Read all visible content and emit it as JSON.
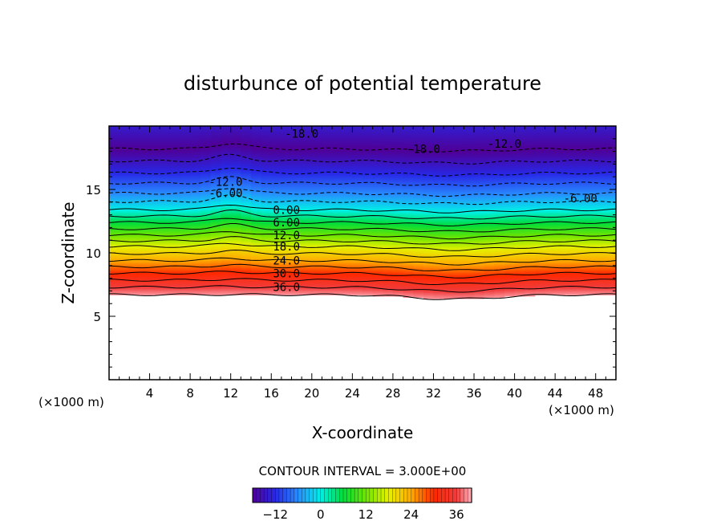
{
  "chart_data": {
    "type": "heatmap",
    "title": "disturbunce of potential temperature",
    "xlabel": "X-coordinate",
    "ylabel": "Z-coordinate",
    "x_unit_label": "(×1000 m)",
    "y_unit_label": "(×1000 m)",
    "xlim": [
      0,
      50
    ],
    "ylim": [
      0,
      20
    ],
    "x_ticks": [
      4,
      8,
      12,
      16,
      20,
      24,
      28,
      32,
      36,
      40,
      44,
      48
    ],
    "y_ticks": [
      5,
      10,
      15
    ],
    "x_tick_labels": [
      "4",
      "8",
      "12",
      "16",
      "20",
      "24",
      "28",
      "32",
      "36",
      "40",
      "44",
      "48"
    ],
    "y_tick_labels": [
      "5",
      "10",
      "15"
    ],
    "contour_interval_label": "CONTOUR INTERVAL = 3.000E+00",
    "colorbar": {
      "range": [
        -18,
        40
      ],
      "ticks": [
        -12,
        0,
        12,
        24,
        36
      ],
      "tick_labels": [
        "−12",
        "0",
        "12",
        "24",
        "36"
      ]
    },
    "contour_labels": [
      {
        "text": "0.00",
        "x": 17.5,
        "y": 13.4
      },
      {
        "text": "6.00",
        "x": 17.5,
        "y": 12.4
      },
      {
        "text": "12.0",
        "x": 17.5,
        "y": 11.4
      },
      {
        "text": "18.0",
        "x": 17.5,
        "y": 10.5
      },
      {
        "text": "24.0",
        "x": 17.5,
        "y": 9.4
      },
      {
        "text": "30.0",
        "x": 17.5,
        "y": 8.4
      },
      {
        "text": "36.0",
        "x": 17.5,
        "y": 7.3
      },
      {
        "text": "-6.00",
        "x": 11.5,
        "y": 14.7
      },
      {
        "text": "-12.0",
        "x": 11.5,
        "y": 15.6
      },
      {
        "text": "-18.0",
        "x": 19.0,
        "y": 19.4
      },
      {
        "text": "-18.0",
        "x": 31.0,
        "y": 18.2
      },
      {
        "text": "-12.0",
        "x": 39.0,
        "y": 18.6
      },
      {
        "text": "-6.00",
        "x": 46.5,
        "y": 14.3
      }
    ],
    "field_levels": [
      {
        "z": 6.7,
        "value": 39
      },
      {
        "z": 7.3,
        "value": 36
      },
      {
        "z": 8.4,
        "value": 30
      },
      {
        "z": 9.4,
        "value": 24
      },
      {
        "z": 10.5,
        "value": 18
      },
      {
        "z": 11.4,
        "value": 12
      },
      {
        "z": 12.4,
        "value": 6
      },
      {
        "z": 13.4,
        "value": 0
      },
      {
        "z": 14.7,
        "value": -6
      },
      {
        "z": 16.3,
        "value": -12
      },
      {
        "z": 18.2,
        "value": -18
      },
      {
        "z": 20.0,
        "value": -14
      }
    ]
  }
}
